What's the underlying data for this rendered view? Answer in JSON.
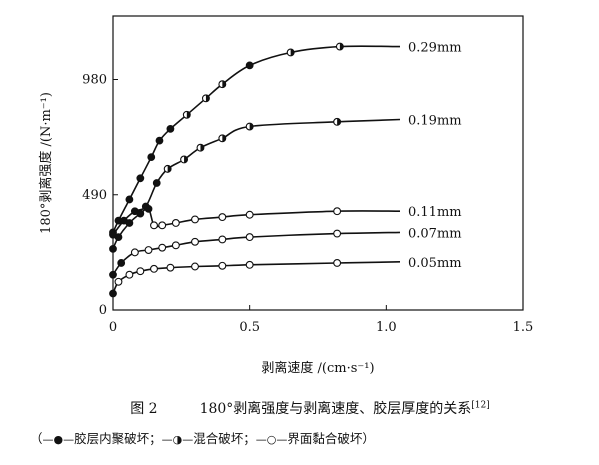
{
  "chart_data": {
    "type": "line",
    "xlabel": "剥离速度 /(cm·s⁻¹)",
    "ylabel": "180°剥离强度 /(N·m⁻¹)",
    "xlim": [
      0,
      1.5
    ],
    "ylim": [
      0,
      1250
    ],
    "x_ticks": [
      0,
      0.5,
      1.0,
      1.5
    ],
    "x_tick_labels": [
      "0",
      "0.5",
      "1.0",
      "1.5"
    ],
    "y_ticks": [
      0,
      490,
      980
    ],
    "y_tick_labels": [
      "0",
      "490",
      "980"
    ],
    "grid": false,
    "marker_legend": [
      {
        "marker": "filled-circle",
        "meaning": "胶层内聚破坏"
      },
      {
        "marker": "half-circle",
        "meaning": "混合破坏"
      },
      {
        "marker": "open-circle",
        "meaning": "界面黏合破坏"
      }
    ],
    "series": [
      {
        "name": "0.29mm",
        "points": [
          {
            "x": 0.0,
            "y": 330,
            "m": "filled"
          },
          {
            "x": 0.02,
            "y": 380,
            "m": "filled"
          },
          {
            "x": 0.06,
            "y": 470,
            "m": "filled"
          },
          {
            "x": 0.1,
            "y": 560,
            "m": "filled"
          },
          {
            "x": 0.14,
            "y": 650,
            "m": "filled"
          },
          {
            "x": 0.17,
            "y": 720,
            "m": "filled"
          },
          {
            "x": 0.21,
            "y": 770,
            "m": "filled"
          },
          {
            "x": 0.27,
            "y": 830,
            "m": "half"
          },
          {
            "x": 0.34,
            "y": 900,
            "m": "half"
          },
          {
            "x": 0.4,
            "y": 960,
            "m": "half"
          },
          {
            "x": 0.5,
            "y": 1040,
            "m": "filled"
          },
          {
            "x": 0.65,
            "y": 1095,
            "m": "half"
          },
          {
            "x": 0.83,
            "y": 1120,
            "m": "half"
          },
          {
            "x": 1.05,
            "y": 1120,
            "m": "none"
          }
        ]
      },
      {
        "name": "0.19mm",
        "points": [
          {
            "x": 0.0,
            "y": 320,
            "m": "filled"
          },
          {
            "x": 0.04,
            "y": 380,
            "m": "filled"
          },
          {
            "x": 0.08,
            "y": 420,
            "m": "filled"
          },
          {
            "x": 0.12,
            "y": 440,
            "m": "filled"
          },
          {
            "x": 0.16,
            "y": 540,
            "m": "filled"
          },
          {
            "x": 0.2,
            "y": 600,
            "m": "half"
          },
          {
            "x": 0.26,
            "y": 640,
            "m": "half"
          },
          {
            "x": 0.32,
            "y": 690,
            "m": "half"
          },
          {
            "x": 0.4,
            "y": 730,
            "m": "half"
          },
          {
            "x": 0.5,
            "y": 780,
            "m": "half"
          },
          {
            "x": 0.82,
            "y": 800,
            "m": "half"
          },
          {
            "x": 1.05,
            "y": 810,
            "m": "none"
          }
        ]
      },
      {
        "name": "0.11mm",
        "points": [
          {
            "x": 0.0,
            "y": 260,
            "m": "filled"
          },
          {
            "x": 0.02,
            "y": 310,
            "m": "filled"
          },
          {
            "x": 0.06,
            "y": 370,
            "m": "filled"
          },
          {
            "x": 0.1,
            "y": 410,
            "m": "filled"
          },
          {
            "x": 0.13,
            "y": 430,
            "m": "filled"
          },
          {
            "x": 0.15,
            "y": 360,
            "m": "open"
          },
          {
            "x": 0.18,
            "y": 360,
            "m": "open"
          },
          {
            "x": 0.23,
            "y": 370,
            "m": "open"
          },
          {
            "x": 0.3,
            "y": 385,
            "m": "open"
          },
          {
            "x": 0.4,
            "y": 395,
            "m": "open"
          },
          {
            "x": 0.5,
            "y": 405,
            "m": "open"
          },
          {
            "x": 0.82,
            "y": 420,
            "m": "open"
          },
          {
            "x": 1.05,
            "y": 420,
            "m": "none"
          }
        ]
      },
      {
        "name": "0.07mm",
        "points": [
          {
            "x": 0.0,
            "y": 150,
            "m": "filled"
          },
          {
            "x": 0.03,
            "y": 200,
            "m": "filled"
          },
          {
            "x": 0.08,
            "y": 245,
            "m": "open"
          },
          {
            "x": 0.13,
            "y": 255,
            "m": "open"
          },
          {
            "x": 0.18,
            "y": 265,
            "m": "open"
          },
          {
            "x": 0.23,
            "y": 275,
            "m": "open"
          },
          {
            "x": 0.3,
            "y": 290,
            "m": "open"
          },
          {
            "x": 0.4,
            "y": 300,
            "m": "open"
          },
          {
            "x": 0.5,
            "y": 310,
            "m": "open"
          },
          {
            "x": 0.82,
            "y": 325,
            "m": "open"
          },
          {
            "x": 1.05,
            "y": 330,
            "m": "none"
          }
        ]
      },
      {
        "name": "0.05mm",
        "points": [
          {
            "x": 0.0,
            "y": 70,
            "m": "filled"
          },
          {
            "x": 0.02,
            "y": 120,
            "m": "open"
          },
          {
            "x": 0.06,
            "y": 150,
            "m": "open"
          },
          {
            "x": 0.1,
            "y": 165,
            "m": "open"
          },
          {
            "x": 0.15,
            "y": 175,
            "m": "open"
          },
          {
            "x": 0.21,
            "y": 180,
            "m": "open"
          },
          {
            "x": 0.3,
            "y": 185,
            "m": "open"
          },
          {
            "x": 0.4,
            "y": 188,
            "m": "open"
          },
          {
            "x": 0.5,
            "y": 192,
            "m": "open"
          },
          {
            "x": 0.82,
            "y": 200,
            "m": "open"
          },
          {
            "x": 1.05,
            "y": 205,
            "m": "none"
          }
        ]
      }
    ]
  },
  "caption": {
    "figure_label": "图 2",
    "title": "180°剥离强度与剥离速度、胶层厚度的关系",
    "reference": "[12]"
  },
  "legend": {
    "open_paren": "（",
    "cohesive_label": "胶层内聚破坏；",
    "mixed_label": "混合破坏；",
    "interface_label": "界面黏合破坏）"
  }
}
